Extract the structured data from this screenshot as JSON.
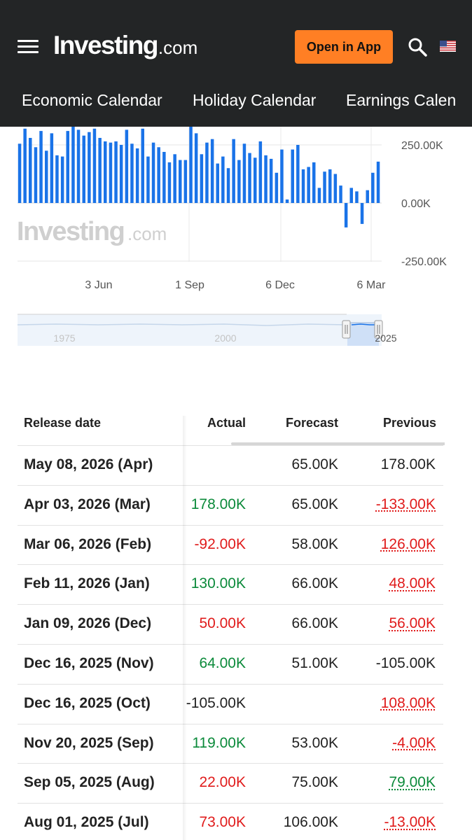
{
  "header": {
    "menu_icon": "hamburger-menu-icon",
    "logo_main": "Investing",
    "logo_suffix": ".com",
    "open_app_label": "Open in App",
    "search_icon": "search-icon",
    "flag_icon": "us-flag-icon"
  },
  "nav": {
    "items": [
      {
        "label": "Economic Calendar"
      },
      {
        "label": "Holiday Calendar"
      },
      {
        "label": "Earnings Calen"
      }
    ]
  },
  "chart_data": {
    "type": "bar",
    "title": "",
    "watermark_main": "Investing",
    "watermark_suffix": ".com",
    "x_tick_labels": [
      "3 Jun",
      "1 Sep",
      "6 Dec",
      "6 Mar"
    ],
    "y_tick_labels": [
      "250.00K",
      "0.00K",
      "-250.00K"
    ],
    "y_ticks": [
      250,
      0,
      -250
    ],
    "ylim": [
      -250,
      335
    ],
    "values": [
      255,
      320,
      280,
      240,
      310,
      225,
      300,
      205,
      200,
      310,
      330,
      315,
      290,
      305,
      320,
      280,
      265,
      260,
      265,
      250,
      315,
      255,
      235,
      320,
      200,
      260,
      240,
      220,
      175,
      210,
      185,
      185,
      335,
      300,
      210,
      260,
      275,
      170,
      200,
      150,
      275,
      185,
      255,
      215,
      195,
      265,
      205,
      190,
      130,
      230,
      15,
      230,
      250,
      145,
      155,
      175,
      65,
      135,
      145,
      125,
      75,
      -105,
      65,
      50,
      -90,
      55,
      130,
      178
    ],
    "bar_color": "#1a73e8",
    "navigator": {
      "labels": [
        "1975",
        "2000",
        "2025"
      ]
    }
  },
  "table": {
    "headers": {
      "release_date": "Release date",
      "actual": "Actual",
      "forecast": "Forecast",
      "previous": "Previous"
    },
    "rows": [
      {
        "date": "May 08, 2026 (Apr)",
        "actual": "",
        "actual_status": "neu",
        "forecast": "65.00K",
        "previous": "178.00K",
        "previous_status": "neu",
        "previous_revised": false
      },
      {
        "date": "Apr 03, 2026 (Mar)",
        "actual": "178.00K",
        "actual_status": "pos",
        "forecast": "65.00K",
        "previous": "-133.00K",
        "previous_status": "neg",
        "previous_revised": true
      },
      {
        "date": "Mar 06, 2026 (Feb)",
        "actual": "-92.00K",
        "actual_status": "neg",
        "forecast": "58.00K",
        "previous": "126.00K",
        "previous_status": "neg",
        "previous_revised": true
      },
      {
        "date": "Feb 11, 2026 (Jan)",
        "actual": "130.00K",
        "actual_status": "pos",
        "forecast": "66.00K",
        "previous": "48.00K",
        "previous_status": "neg",
        "previous_revised": true
      },
      {
        "date": "Jan 09, 2026 (Dec)",
        "actual": "50.00K",
        "actual_status": "neg",
        "forecast": "66.00K",
        "previous": "56.00K",
        "previous_status": "neg",
        "previous_revised": true
      },
      {
        "date": "Dec 16, 2025 (Nov)",
        "actual": "64.00K",
        "actual_status": "pos",
        "forecast": "51.00K",
        "previous": "-105.00K",
        "previous_status": "neu",
        "previous_revised": false
      },
      {
        "date": "Dec 16, 2025 (Oct)",
        "actual": "-105.00K",
        "actual_status": "neu",
        "forecast": "",
        "previous": "108.00K",
        "previous_status": "neg",
        "previous_revised": true
      },
      {
        "date": "Nov 20, 2025 (Sep)",
        "actual": "119.00K",
        "actual_status": "pos",
        "forecast": "53.00K",
        "previous": "-4.00K",
        "previous_status": "neg",
        "previous_revised": true
      },
      {
        "date": "Sep 05, 2025 (Aug)",
        "actual": "22.00K",
        "actual_status": "neg",
        "forecast": "75.00K",
        "previous": "79.00K",
        "previous_status": "pos",
        "previous_revised": true
      },
      {
        "date": "Aug 01, 2025 (Jul)",
        "actual": "73.00K",
        "actual_status": "neg",
        "forecast": "106.00K",
        "previous": "-13.00K",
        "previous_status": "neg",
        "previous_revised": true
      }
    ]
  }
}
